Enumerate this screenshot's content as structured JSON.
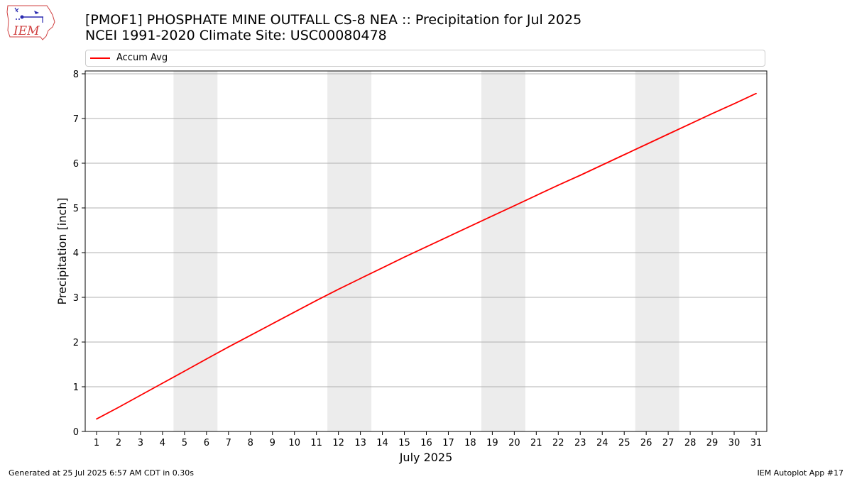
{
  "logo": {
    "text": "IEM",
    "icon": "iem-logo-icon"
  },
  "header": {
    "title_line1": "[PMOF1] PHOSPHATE MINE OUTFALL CS-8 NEA :: Precipitation for Jul 2025",
    "title_line2": "NCEI 1991-2020 Climate Site: USC00080478"
  },
  "footer": {
    "left": "Generated at 25 Jul 2025 6:57 AM CDT in 0.30s",
    "right": "IEM Autoplot App #17"
  },
  "chart_data": {
    "type": "line",
    "title": "[PMOF1] PHOSPHATE MINE OUTFALL CS-8 NEA :: Precipitation for Jul 2025",
    "subtitle": "NCEI 1991-2020 Climate Site: USC00080478",
    "xlabel": "July 2025",
    "ylabel": "Precipitation [inch]",
    "ylim": [
      0,
      8
    ],
    "yticks": [
      0,
      1,
      2,
      3,
      4,
      5,
      6,
      7,
      8
    ],
    "grid": "y",
    "legend_position": "top",
    "categories": [
      "1",
      "2",
      "3",
      "4",
      "5",
      "6",
      "7",
      "8",
      "9",
      "10",
      "11",
      "12",
      "13",
      "14",
      "15",
      "16",
      "17",
      "18",
      "19",
      "20",
      "21",
      "22",
      "23",
      "24",
      "25",
      "26",
      "27",
      "28",
      "29",
      "30",
      "31"
    ],
    "weekend_shading": [
      [
        5,
        6
      ],
      [
        12,
        13
      ],
      [
        19,
        20
      ],
      [
        26,
        27
      ]
    ],
    "series": [
      {
        "name": "Accum Avg",
        "color": "#ff0000",
        "values": [
          0.28,
          0.54,
          0.81,
          1.08,
          1.35,
          1.62,
          1.89,
          2.15,
          2.41,
          2.67,
          2.93,
          3.18,
          3.42,
          3.66,
          3.9,
          4.13,
          4.36,
          4.59,
          4.82,
          5.05,
          5.28,
          5.51,
          5.73,
          5.96,
          6.19,
          6.42,
          6.65,
          6.88,
          7.11,
          7.33,
          7.56
        ]
      }
    ]
  }
}
